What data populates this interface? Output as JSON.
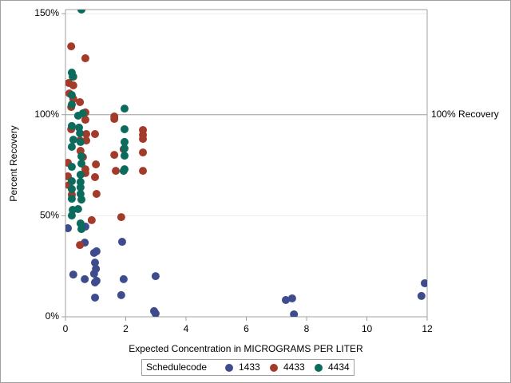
{
  "chart_data": {
    "type": "scatter",
    "x_label": "Expected Concentration in MICROGRAMS PER LITER",
    "y_label": "Percent Recovery",
    "xlim": [
      0,
      12
    ],
    "xticks": [
      0,
      2,
      4,
      6,
      8,
      10,
      12
    ],
    "ylim": [
      0,
      152
    ],
    "yticks": [
      {
        "value": 0,
        "label": "0%"
      },
      {
        "value": 50,
        "label": "50%"
      },
      {
        "value": 100,
        "label": "100%"
      },
      {
        "value": 150,
        "label": "150%"
      }
    ],
    "grid": true,
    "reference_line": {
      "value": 100,
      "label": "100% Recovery"
    },
    "legend_title": "Schedulecode",
    "legend_position": "bottom",
    "series": [
      {
        "name": "1433",
        "color": "#3e4c8e",
        "x": [
          0.08,
          0.26,
          0.64,
          0.64,
          0.66,
          0.95,
          1.03,
          0.98,
          1.01,
          0.95,
          0.98,
          1.03,
          0.98,
          1.88,
          1.93,
          1.85,
          2.99,
          2.94,
          2.99,
          7.31,
          7.52,
          7.58,
          11.81,
          11.92
        ],
        "values": [
          43.8,
          20.9,
          36.7,
          18.6,
          44.6,
          31.6,
          32.4,
          26.8,
          23.7,
          21.3,
          17.0,
          17.8,
          9.5,
          37.1,
          18.6,
          10.7,
          20.1,
          2.8,
          1.6,
          8.3,
          9.1,
          1.2,
          10.3,
          16.6
        ]
      },
      {
        "name": "4433",
        "color": "#a23b2a",
        "x": [
          0.19,
          0.11,
          0.19,
          0.26,
          0.26,
          0.26,
          0.13,
          0.48,
          0.66,
          0.66,
          0.66,
          0.19,
          0.08,
          0.08,
          0.21,
          0.11,
          0.48,
          0.5,
          0.58,
          0.66,
          0.66,
          0.69,
          0.69,
          0.98,
          1.01,
          0.98,
          1.03,
          0.87,
          0.48,
          1.62,
          1.62,
          1.62,
          1.67,
          1.85,
          1.93,
          2.57,
          2.57,
          2.57,
          2.57,
          2.57
        ],
        "values": [
          103.8,
          115.7,
          133.8,
          118.8,
          114.5,
          107.8,
          110.5,
          106.2,
          127.9,
          101.1,
          97.5,
          92.8,
          76.2,
          69.5,
          60.4,
          65.1,
          87.2,
          82.1,
          79.0,
          73.0,
          71.1,
          87.2,
          90.4,
          90.4,
          75.4,
          69.1,
          60.8,
          47.8,
          35.5,
          99.1,
          97.9,
          80.1,
          72.2,
          49.3,
          82.9,
          92.4,
          90.0,
          88.0,
          81.3,
          72.2
        ]
      },
      {
        "name": "4434",
        "color": "#0b6b5c",
        "x": [
          0.53,
          0.21,
          0.24,
          0.21,
          0.21,
          0.21,
          0.26,
          0.21,
          0.21,
          0.21,
          0.21,
          0.21,
          0.24,
          0.21,
          0.42,
          0.45,
          0.48,
          0.5,
          0.58,
          0.53,
          0.53,
          0.5,
          0.5,
          0.5,
          0.5,
          0.53,
          0.42,
          0.5,
          0.53,
          1.96,
          1.96,
          1.96,
          1.96,
          1.96,
          1.96,
          1.93
        ],
        "values": [
          152,
          120.8,
          118.8,
          109.7,
          105.0,
          94.4,
          87.6,
          84.1,
          74.2,
          67.1,
          63.2,
          58.4,
          52.9,
          50.1,
          99.5,
          93.6,
          90.8,
          86.5,
          100.7,
          79.4,
          75.8,
          70.3,
          66.7,
          64.0,
          60.8,
          58.0,
          53.3,
          46.2,
          43.4,
          103.0,
          92.8,
          86.5,
          83.3,
          79.7,
          73.0,
          72.2
        ]
      }
    ]
  }
}
